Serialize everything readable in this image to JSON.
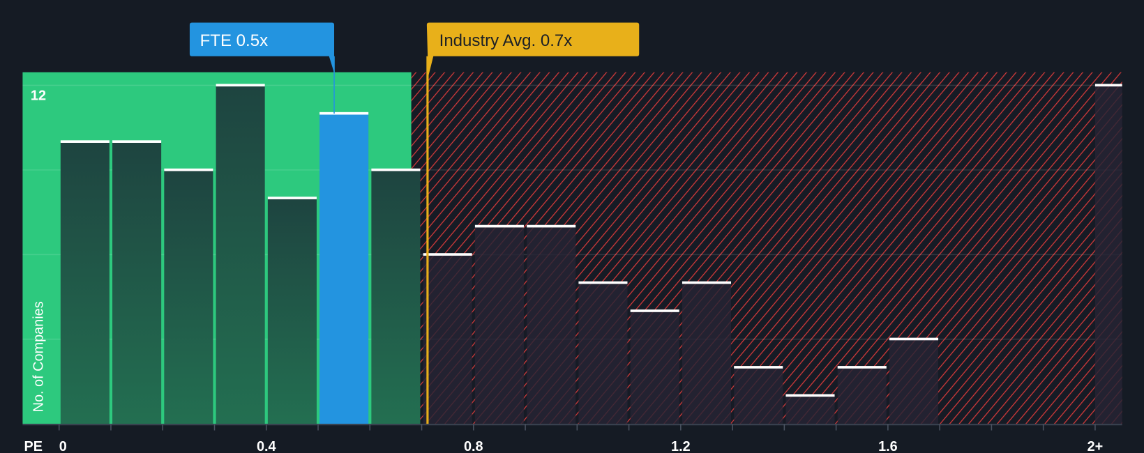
{
  "chart_data": {
    "type": "bar",
    "title": "",
    "xlabel": "PE",
    "ylabel": "No. of Companies",
    "bin_width": 0.1,
    "bins": [
      0,
      0.1,
      0.2,
      0.3,
      0.4,
      0.5,
      0.6,
      0.7,
      0.8,
      0.9,
      1.0,
      1.1,
      1.2,
      1.3,
      1.4,
      1.5,
      1.6,
      "2+"
    ],
    "values": [
      10,
      10,
      9,
      12,
      8,
      11,
      9,
      6,
      7,
      7,
      5,
      4,
      5,
      2,
      1,
      2,
      3,
      12
    ],
    "highlight_bin_index": 5,
    "x_ticks": [
      "0",
      "0.4",
      "0.8",
      "1.2",
      "1.6",
      "2+"
    ],
    "y_tick_label": "12",
    "ylim": [
      0,
      12.4
    ],
    "grid": true,
    "fair_range_max": 0.68,
    "annotations": {
      "company": {
        "label": "FTE 0.5x",
        "value": 0.5
      },
      "industry": {
        "label": "Industry Avg. 0.7x",
        "value": 0.7
      }
    },
    "colors": {
      "background": "#151b24",
      "fair_zone": "#2dc97e",
      "bar": "#1f4a3f",
      "highlight": "#2394e0",
      "industry": "#e8b01a",
      "overvalued_hatch": "#d63a3a"
    }
  }
}
